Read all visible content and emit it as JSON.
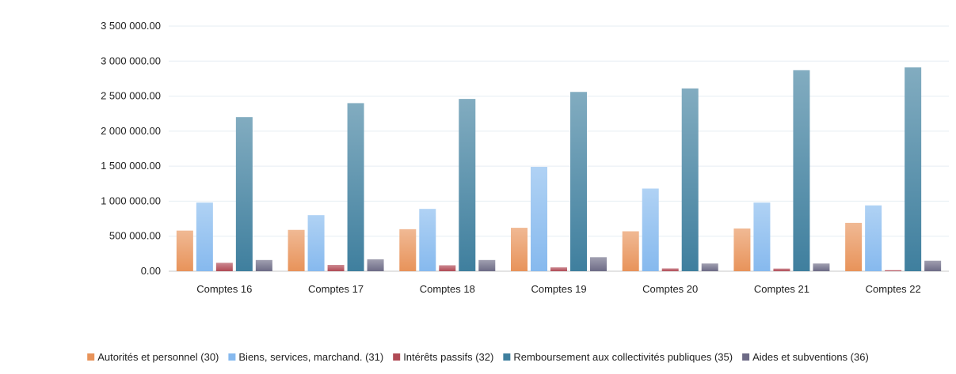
{
  "chart_data": {
    "type": "bar",
    "title": "",
    "xlabel": "",
    "ylabel": "",
    "ylim": [
      0,
      3500000
    ],
    "yticks": [
      0,
      500000,
      1000000,
      1500000,
      2000000,
      2500000,
      3000000,
      3500000
    ],
    "ytick_labels": [
      "0.00",
      "500 000.00",
      "1 000 000.00",
      "1 500 000.00",
      "2 000 000.00",
      "2 500 000.00",
      "3 000 000.00",
      "3 500 000.00"
    ],
    "grid": true,
    "legend_position": "bottom",
    "categories": [
      "Comptes 16",
      "Comptes 17",
      "Comptes 18",
      "Comptes 19",
      "Comptes 20",
      "Comptes 21",
      "Comptes 22"
    ],
    "series": [
      {
        "name": "Autorités et personnel (30)",
        "color": "#e8935a",
        "values": [
          580000,
          590000,
          600000,
          620000,
          570000,
          610000,
          690000
        ]
      },
      {
        "name": "Biens, services, marchand. (31)",
        "color": "#86b9ee",
        "values": [
          980000,
          800000,
          890000,
          1490000,
          1180000,
          980000,
          940000
        ]
      },
      {
        "name": "Intérêts passifs (32)",
        "color": "#b04a55",
        "values": [
          120000,
          90000,
          85000,
          55000,
          40000,
          38000,
          15000
        ]
      },
      {
        "name": "Remboursement aux collectivités publiques (35)",
        "color": "#3f7f9e",
        "values": [
          2200000,
          2400000,
          2460000,
          2560000,
          2610000,
          2870000,
          2910000
        ]
      },
      {
        "name": "Aides et subventions (36)",
        "color": "#6d6b86",
        "values": [
          160000,
          170000,
          160000,
          200000,
          110000,
          110000,
          150000
        ]
      }
    ]
  }
}
